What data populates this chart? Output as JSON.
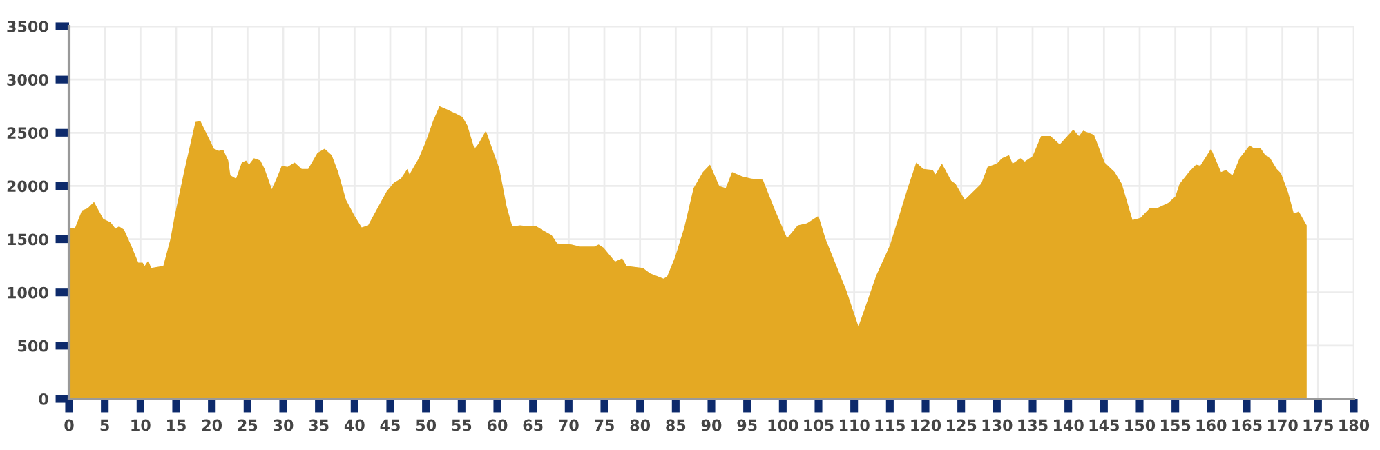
{
  "chart_data": {
    "type": "area",
    "xlim": [
      0,
      180
    ],
    "ylim": [
      0,
      3500
    ],
    "xticks": [
      0,
      5,
      10,
      15,
      20,
      25,
      30,
      35,
      40,
      45,
      50,
      55,
      60,
      65,
      70,
      75,
      80,
      85,
      90,
      95,
      100,
      105,
      110,
      115,
      120,
      125,
      130,
      135,
      140,
      145,
      150,
      155,
      160,
      165,
      170,
      175,
      180
    ],
    "yticks": [
      0,
      500,
      1000,
      1500,
      2000,
      2500,
      3000,
      3500
    ],
    "grid": true,
    "legend": false,
    "series": [
      {
        "color": "#e4a923",
        "x": [
          0,
          0.8,
          1.8,
          2.6,
          3.5,
          3.9,
          4.8,
          5.8,
          6.5,
          7,
          7.7,
          8.7,
          9.7,
          10.3,
          10.6,
          11.1,
          11.5,
          13.2,
          14.2,
          14.8,
          16.1,
          17.7,
          18.4,
          20.3,
          21,
          21.6,
          22.3,
          22.6,
          23.4,
          24.2,
          24.8,
          25.2,
          25.9,
          26.8,
          27.4,
          28.4,
          29.2,
          29.8,
          30.6,
          31.6,
          32.6,
          33.5,
          34.8,
          35.8,
          36.8,
          37.7,
          38.8,
          40,
          41,
          41.9,
          43.2,
          44.5,
          45.5,
          46.5,
          47.4,
          47.7,
          49,
          50,
          51,
          51.9,
          52.9,
          54.2,
          55.1,
          55.8,
          56.8,
          57.4,
          58.4,
          59.4,
          60.3,
          61.3,
          62.1,
          63.2,
          64.5,
          65.5,
          66.5,
          67.6,
          68.4,
          70.4,
          71.6,
          73.6,
          74.2,
          74.9,
          76.5,
          77.5,
          78.1,
          80.4,
          81.4,
          83.3,
          83.8,
          84.9,
          86.2,
          87.5,
          88.8,
          89.8,
          91.1,
          92,
          92.9,
          94.3,
          95.6,
          97.2,
          98.8,
          100.6,
          102.1,
          103.4,
          105,
          106,
          108.9,
          110.6,
          111.5,
          113.1,
          115,
          116.3,
          117.5,
          118.7,
          119.7,
          121,
          121.4,
          122.3,
          123.6,
          124.2,
          125.5,
          127.8,
          128.7,
          130,
          130.7,
          131.7,
          132.2,
          133.3,
          133.9,
          135,
          136.2,
          137.5,
          138.8,
          140.7,
          141.5,
          142.1,
          143.6,
          145.1,
          146.5,
          147.5,
          149,
          150.1,
          151.4,
          152.4,
          154,
          155,
          155.6,
          156.9,
          157.9,
          158.5,
          160,
          161.4,
          162.1,
          163,
          164,
          165.4,
          165.9,
          166.9,
          167.6,
          168.2,
          169.2,
          169.8,
          170.8,
          171.6,
          172.3,
          173.4
        ],
        "values": [
          1610,
          1600,
          1770,
          1790,
          1850,
          1800,
          1690,
          1660,
          1600,
          1620,
          1590,
          1440,
          1280,
          1280,
          1250,
          1300,
          1230,
          1250,
          1500,
          1720,
          2130,
          2600,
          2610,
          2350,
          2330,
          2340,
          2240,
          2100,
          2070,
          2220,
          2240,
          2200,
          2260,
          2240,
          2160,
          1970,
          2090,
          2190,
          2180,
          2220,
          2160,
          2160,
          2310,
          2350,
          2290,
          2130,
          1870,
          1720,
          1610,
          1630,
          1790,
          1950,
          2030,
          2070,
          2160,
          2110,
          2260,
          2420,
          2610,
          2750,
          2720,
          2680,
          2650,
          2570,
          2350,
          2400,
          2520,
          2330,
          2160,
          1810,
          1620,
          1630,
          1620,
          1620,
          1580,
          1540,
          1460,
          1450,
          1430,
          1430,
          1450,
          1420,
          1290,
          1320,
          1250,
          1230,
          1180,
          1130,
          1150,
          1330,
          1610,
          1980,
          2130,
          2200,
          2000,
          1980,
          2130,
          2090,
          2070,
          2060,
          1790,
          1510,
          1630,
          1650,
          1720,
          1500,
          1020,
          680,
          850,
          1160,
          1440,
          1720,
          1980,
          2220,
          2160,
          2150,
          2110,
          2210,
          2050,
          2020,
          1870,
          2020,
          2180,
          2210,
          2260,
          2290,
          2210,
          2260,
          2230,
          2280,
          2470,
          2470,
          2390,
          2530,
          2470,
          2520,
          2480,
          2220,
          2130,
          2020,
          1680,
          1700,
          1790,
          1790,
          1840,
          1900,
          2020,
          2130,
          2200,
          2190,
          2350,
          2130,
          2150,
          2100,
          2260,
          2380,
          2360,
          2360,
          2290,
          2270,
          2160,
          2120,
          1940,
          1740,
          1760,
          1630
        ]
      }
    ]
  }
}
